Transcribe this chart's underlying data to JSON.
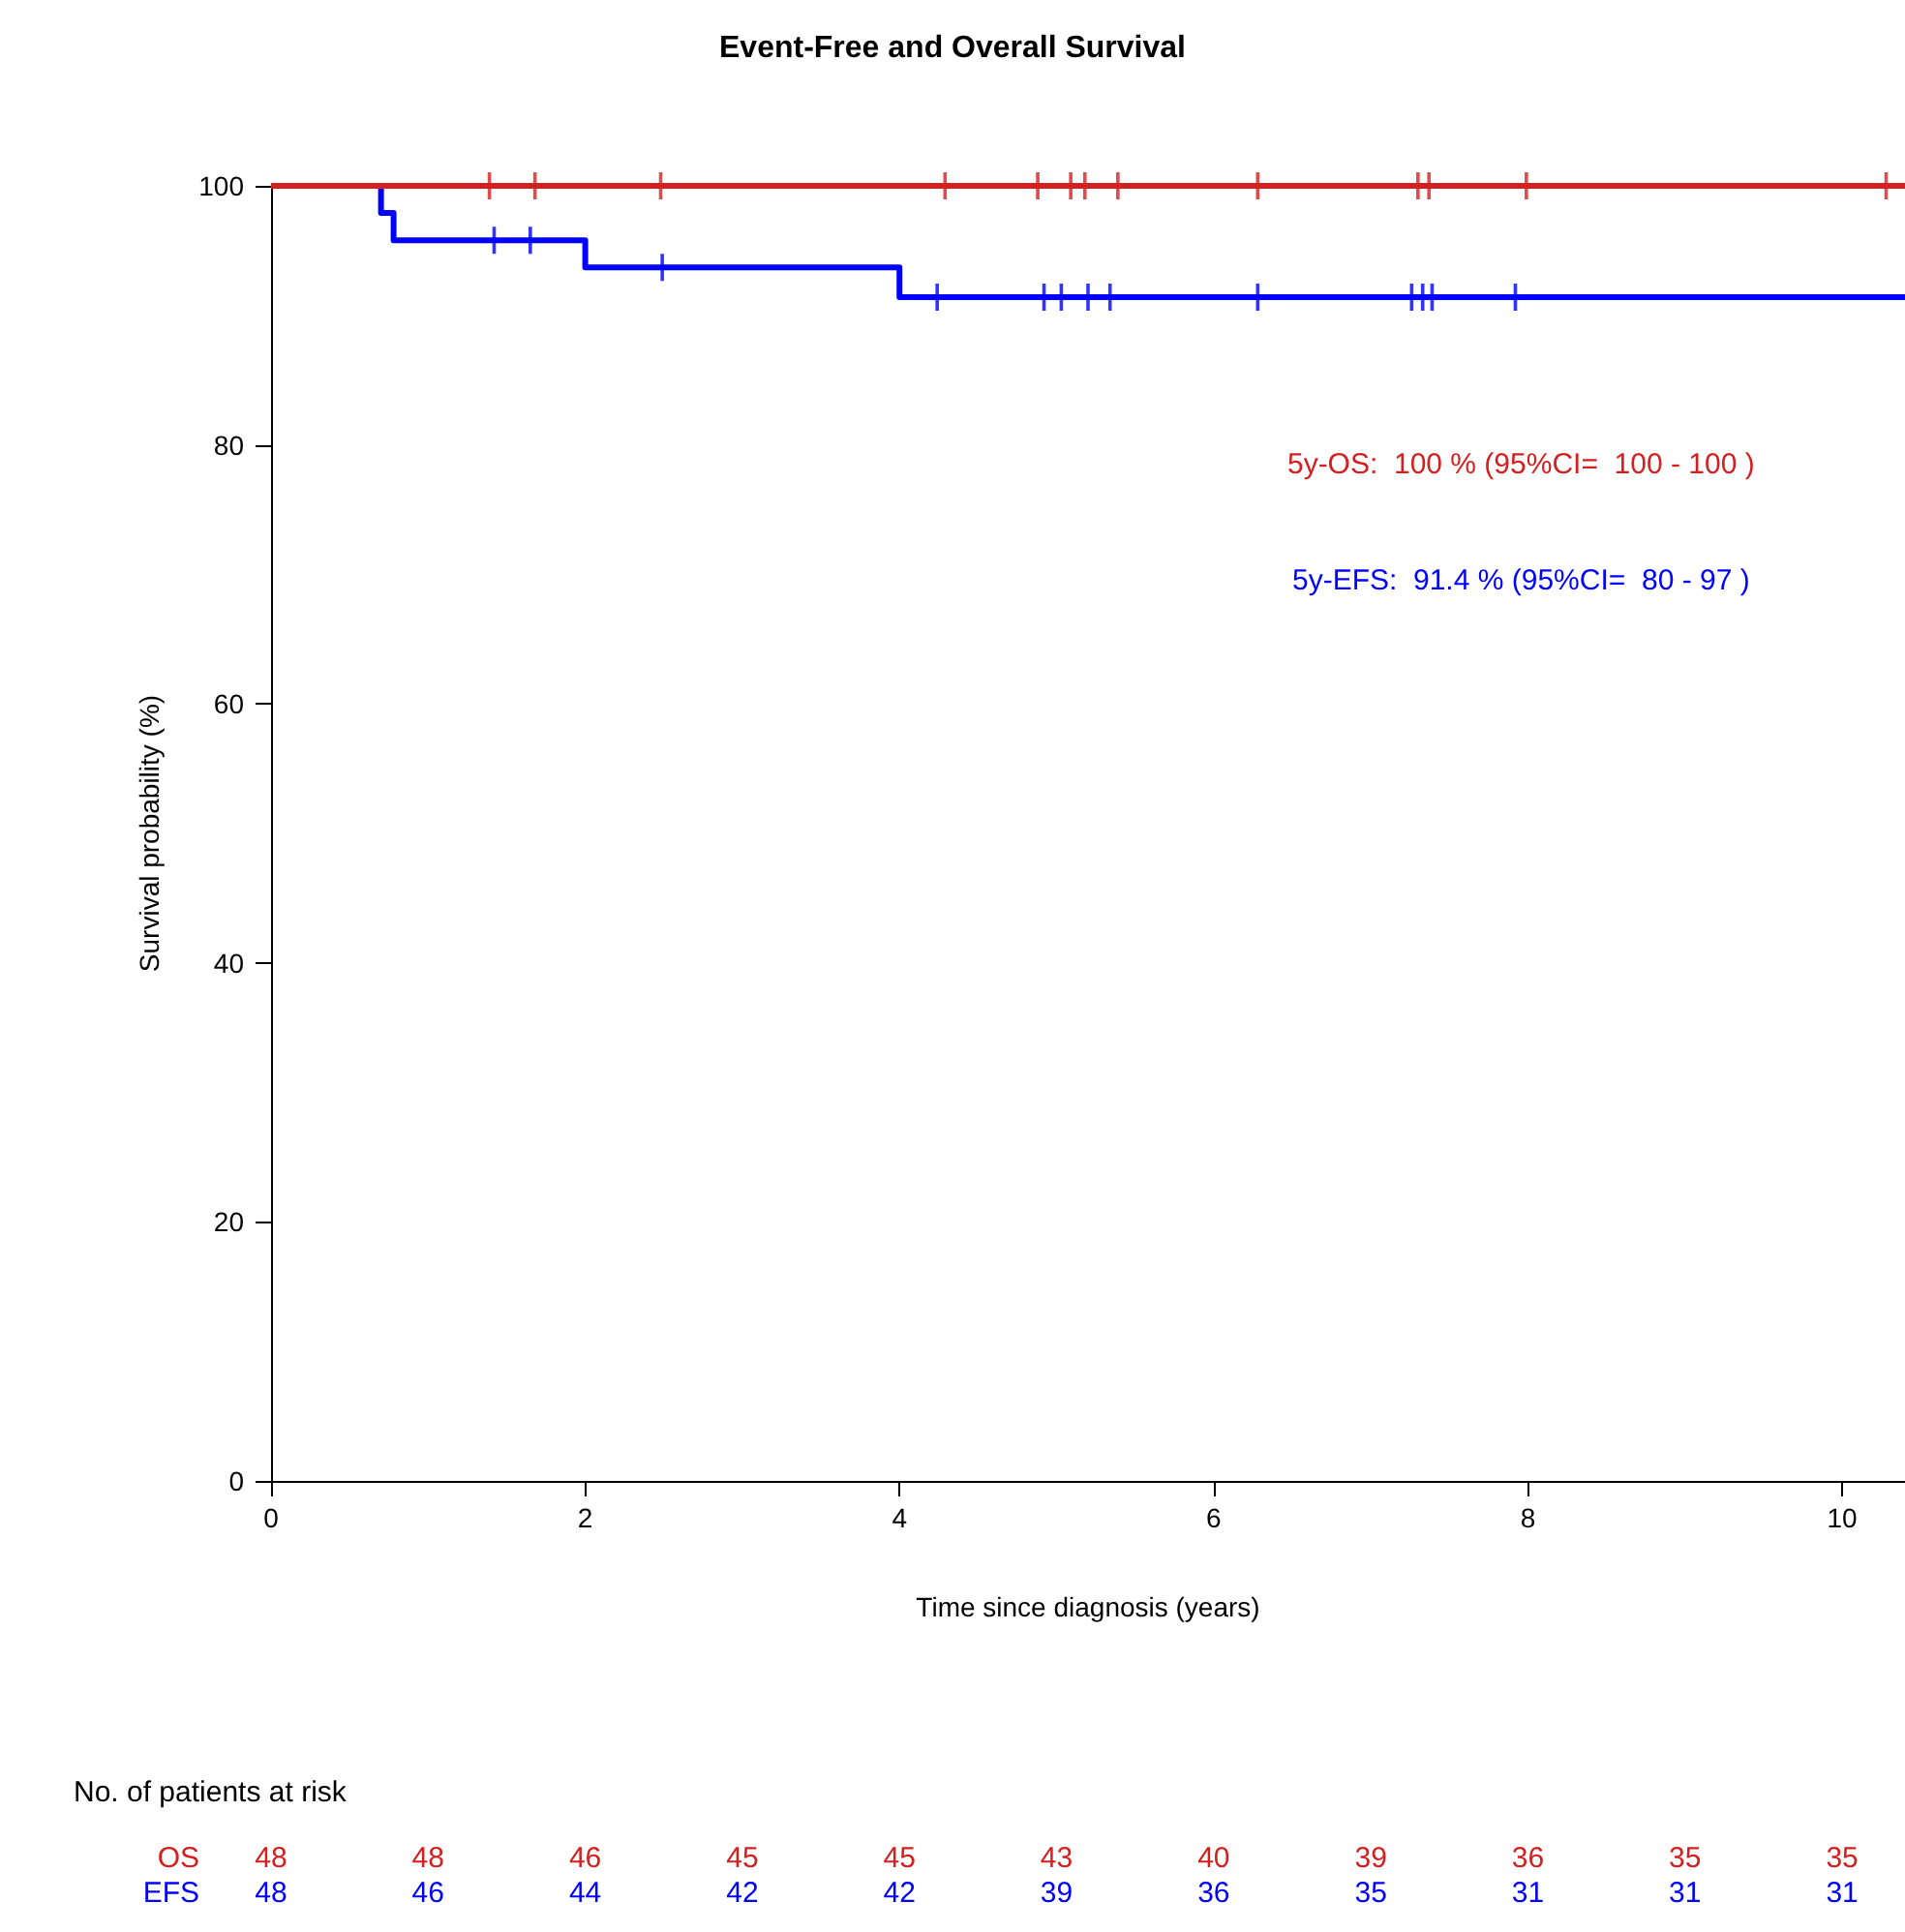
{
  "chart_data": {
    "type": "step",
    "title": "Event-Free and Overall Survival",
    "xlabel": "Time since diagnosis (years)",
    "ylabel": "Survival probability (%)",
    "xlim": [
      0,
      10.4
    ],
    "xticks": [
      0,
      2,
      4,
      6,
      8,
      10
    ],
    "ylim": [
      0,
      100
    ],
    "yticks": [
      0,
      20,
      40,
      60,
      80,
      100
    ],
    "grid": false,
    "legend": false,
    "line_style": "solid",
    "series": [
      {
        "name": "OS",
        "color": "#d42020",
        "marker": "none",
        "x": [
          0,
          10.4
        ],
        "values": [
          100,
          100
        ]
      },
      {
        "name": "EFS",
        "color": "#0000ff",
        "marker": "none",
        "x": [
          0,
          0.7,
          0.78,
          2,
          4,
          10.4
        ],
        "values": [
          100,
          97.9,
          95.8,
          93.7,
          91.4,
          91.4
        ]
      },
      {
        "type": "scatter",
        "color": "#d42020",
        "marker": "cross",
        "x": [
          1.39,
          1.68,
          2.48,
          4.29,
          4.88,
          5.09,
          5.18,
          5.39,
          6.28,
          7.3,
          7.37,
          7.99,
          10.28
        ],
        "values": [
          100,
          100,
          100,
          100,
          100,
          100,
          100,
          100,
          100,
          100,
          100,
          100,
          100
        ]
      },
      {
        "type": "scatter",
        "color": "#0000ff",
        "marker": "cross",
        "x": [
          1.42,
          1.65,
          2.49,
          4.24,
          4.92,
          5.03,
          5.2,
          5.34,
          6.28,
          7.26,
          7.33,
          7.39,
          7.92
        ],
        "values": [
          95.8,
          95.8,
          93.7,
          91.4,
          91.4,
          91.4,
          91.4,
          91.4,
          91.4,
          91.4,
          91.4,
          91.4,
          91.4
        ]
      }
    ],
    "annotations": [
      "5y-OS:  100 % (95%CI=  100 - 100 )",
      "5y-EFS:  91.4 % (95%CI=  80 - 97 )",
      "No. of patients at risk",
      "48",
      "48",
      "46",
      "45",
      "45",
      "43",
      "40",
      "39",
      "36",
      "35",
      "35",
      "48",
      "46",
      "44",
      "42",
      "42",
      "39",
      "36",
      "35",
      "31",
      "31",
      "31"
    ]
  }
}
